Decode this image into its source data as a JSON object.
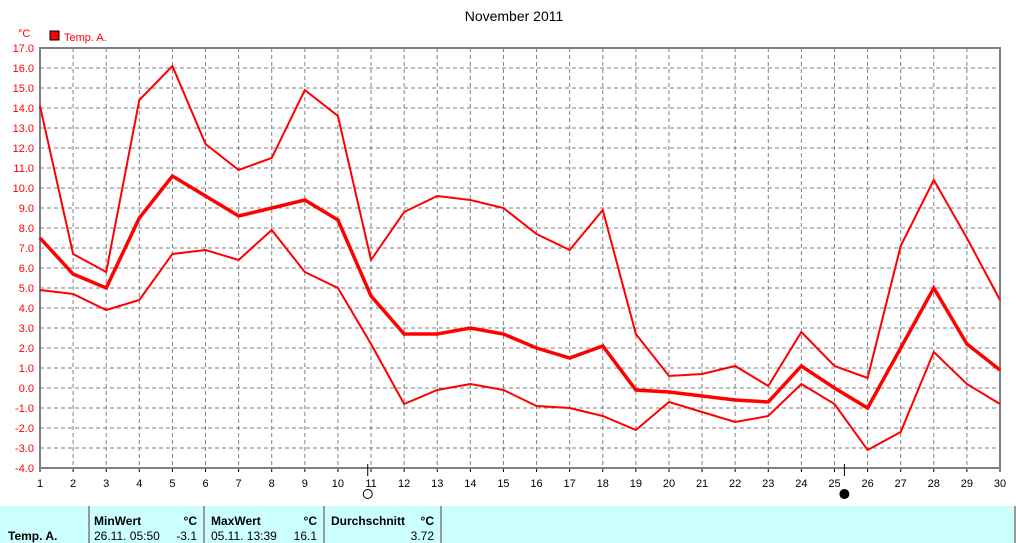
{
  "chart_data": {
    "type": "line",
    "title": "November 2011",
    "ylabel": "°C",
    "legend": [
      "Temp. A."
    ],
    "legend_placement": "top-left",
    "color": "#ff0000",
    "grid": true,
    "ylim": [
      -4,
      17
    ],
    "yticks": [
      "17.0",
      "16.0",
      "15.0",
      "14.0",
      "13.0",
      "12.0",
      "11.0",
      "10.0",
      "9.0",
      "8.0",
      "7.0",
      "6.0",
      "5.0",
      "4.0",
      "3.0",
      "2.0",
      "1.0",
      "0.0",
      "-1.0",
      "-2.0",
      "-3.0",
      "-4.0"
    ],
    "x": [
      1,
      2,
      3,
      4,
      5,
      6,
      7,
      8,
      9,
      10,
      11,
      12,
      13,
      14,
      15,
      16,
      17,
      18,
      19,
      20,
      21,
      22,
      23,
      24,
      25,
      26,
      27,
      28,
      29,
      30
    ],
    "series": [
      {
        "values": [
          14.1,
          6.7,
          5.8,
          14.4,
          16.1,
          12.2,
          10.9,
          11.5,
          14.9,
          13.6,
          6.4,
          8.8,
          9.6,
          9.4,
          9.0,
          7.7,
          6.9,
          8.9,
          2.7,
          0.6,
          0.7,
          1.1,
          0.1,
          2.8,
          1.1,
          0.5,
          7.1,
          10.4,
          7.5,
          4.4
        ]
      },
      {
        "values": [
          7.5,
          5.7,
          5.0,
          8.5,
          10.6,
          9.6,
          8.6,
          9.0,
          9.4,
          8.4,
          4.6,
          2.7,
          2.7,
          3.0,
          2.7,
          2.0,
          1.5,
          2.1,
          -0.1,
          -0.2,
          -0.4,
          -0.6,
          -0.7,
          1.1,
          0.0,
          -1.0,
          2.0,
          5.0,
          2.2,
          0.9
        ],
        "bold": true
      },
      {
        "values": [
          4.9,
          4.7,
          3.9,
          4.4,
          6.7,
          6.9,
          6.4,
          7.9,
          5.8,
          5.0,
          2.2,
          -0.8,
          -0.1,
          0.2,
          -0.1,
          -0.9,
          -1.0,
          -1.4,
          -2.1,
          -0.7,
          -1.2,
          -1.7,
          -1.4,
          0.2,
          -0.8,
          -3.1,
          -2.2,
          1.8,
          0.2,
          -0.8
        ]
      }
    ],
    "moon_phases": [
      {
        "day": 10.9,
        "phase": "full-moon"
      },
      {
        "day": 25.3,
        "phase": "new-moon"
      }
    ]
  },
  "table": {
    "row_label": "Temp. A.",
    "min": {
      "header": "MinWert",
      "unit": "°C",
      "date": "26.11.  05:50",
      "value": "-3.1"
    },
    "max": {
      "header": "MaxWert",
      "unit": "°C",
      "date": "05.11.  13:39",
      "value": "16.1"
    },
    "avg": {
      "header": "Durchschnitt",
      "unit": "°C",
      "value": "3.72"
    }
  }
}
